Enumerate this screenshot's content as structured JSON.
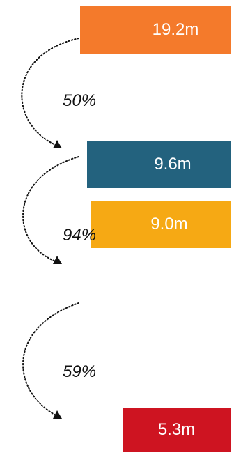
{
  "steps": [
    {
      "value": "19.2m",
      "color": "#F47A2B"
    },
    {
      "value": "9.6m",
      "color": "#23627E"
    },
    {
      "value": "9.0m",
      "color": "#F6A914"
    },
    {
      "value": "5.3m",
      "color": "#CE1421"
    }
  ],
  "transitions": [
    {
      "label": "50%"
    },
    {
      "label": "94%"
    },
    {
      "label": "59%"
    }
  ]
}
